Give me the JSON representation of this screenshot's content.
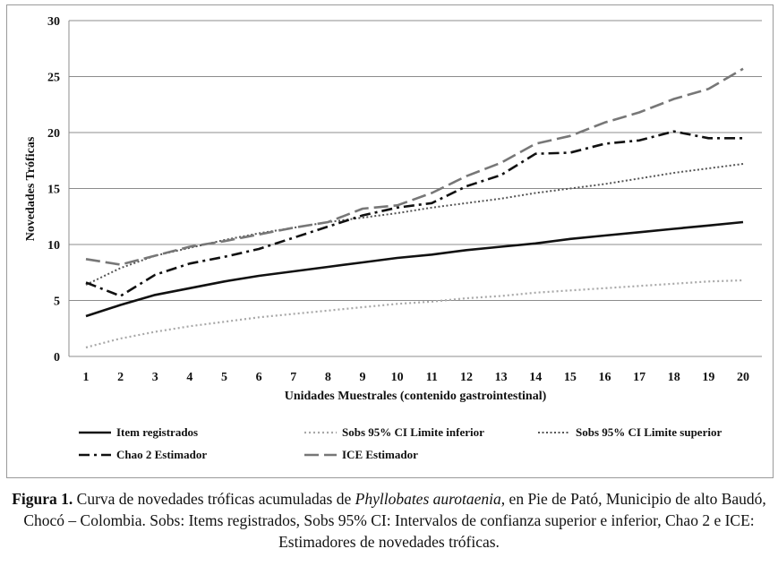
{
  "chart_data": {
    "type": "line",
    "title": "",
    "xlabel": "Unidades Muestrales (contenido gastrointestinal)",
    "ylabel": "Novedades Tróficas",
    "ylim": [
      0,
      30
    ],
    "yticks": [
      0,
      5,
      10,
      15,
      20,
      25,
      30
    ],
    "x": [
      1,
      2,
      3,
      4,
      5,
      6,
      7,
      8,
      9,
      10,
      11,
      12,
      13,
      14,
      15,
      16,
      17,
      18,
      19,
      20
    ],
    "grid": "horizontal",
    "legend_position": "bottom",
    "series": [
      {
        "name": "Item registrados",
        "style": "solid",
        "color": "#111111",
        "values": [
          3.6,
          4.6,
          5.5,
          6.1,
          6.7,
          7.2,
          7.6,
          8.0,
          8.4,
          8.8,
          9.1,
          9.5,
          9.8,
          10.1,
          10.5,
          10.8,
          11.1,
          11.4,
          11.7,
          12.0
        ]
      },
      {
        "name": "Sobs 95% CI Limite inferior",
        "style": "dotted-light",
        "color": "#a8a8a8",
        "values": [
          0.8,
          1.6,
          2.2,
          2.7,
          3.1,
          3.5,
          3.8,
          4.1,
          4.4,
          4.7,
          4.9,
          5.2,
          5.4,
          5.7,
          5.9,
          6.1,
          6.3,
          6.5,
          6.7,
          6.8
        ]
      },
      {
        "name": "Sobs 95% CI Limite superior",
        "style": "dotted-dark",
        "color": "#555555",
        "values": [
          6.4,
          7.9,
          9.0,
          9.7,
          10.4,
          11.0,
          11.5,
          12.0,
          12.4,
          12.8,
          13.3,
          13.7,
          14.1,
          14.6,
          15.0,
          15.4,
          15.9,
          16.4,
          16.8,
          17.2
        ]
      },
      {
        "name": "Chao 2 Estimador",
        "style": "dash-dot",
        "color": "#111111",
        "values": [
          6.6,
          5.4,
          7.3,
          8.3,
          8.9,
          9.6,
          10.6,
          11.6,
          12.6,
          13.3,
          13.7,
          15.2,
          16.2,
          18.1,
          18.2,
          19.0,
          19.3,
          20.1,
          19.5,
          19.5
        ]
      },
      {
        "name": "ICE Estimador",
        "style": "long-dash",
        "color": "#777777",
        "values": [
          8.7,
          8.2,
          9.0,
          9.8,
          10.3,
          10.9,
          11.5,
          12.0,
          13.2,
          13.5,
          14.6,
          16.1,
          17.3,
          19.0,
          19.7,
          20.9,
          21.8,
          23.0,
          23.9,
          25.7
        ]
      }
    ]
  },
  "caption": {
    "label": "Figura 1.",
    "part1": " Curva de novedades tróficas acumuladas de ",
    "species": "Phyllobates aurotaenia",
    "part2": ", en Pie de Pató, Municipio de alto Baudó, Chocó – Colombia. Sobs: Items registrados, Sobs 95% CI: Intervalos de confianza superior e inferior, Chao 2 e ICE: Estimadores de novedades tróficas."
  }
}
